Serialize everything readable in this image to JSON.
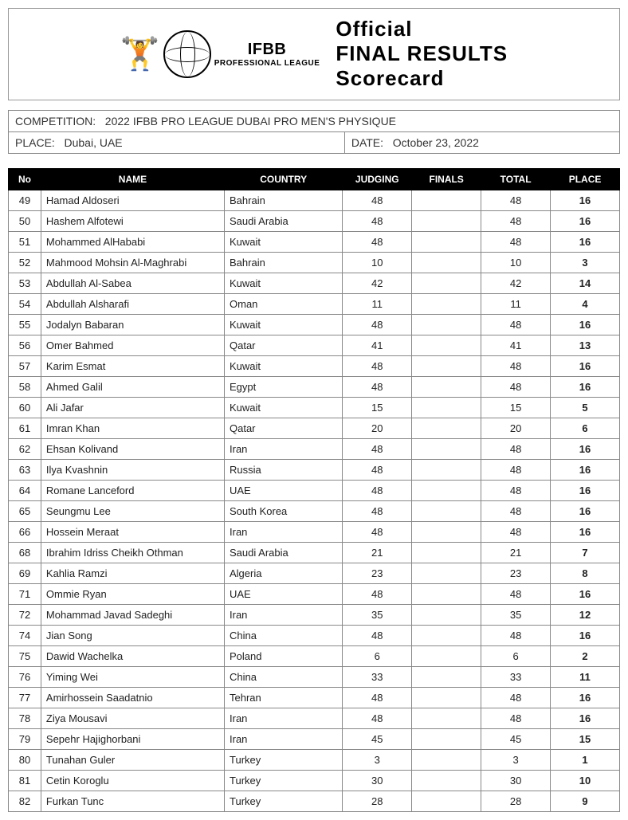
{
  "header": {
    "line1": "Official",
    "line2": "FINAL RESULTS",
    "line3": "Scorecard",
    "logo_big": "IFBB",
    "logo_small": "PROFESSIONAL LEAGUE"
  },
  "meta": {
    "competition_label": "COMPETITION:",
    "competition_value": "2022 IFBB PRO LEAGUE DUBAI PRO MEN'S PHYSIQUE",
    "place_label": "PLACE:",
    "place_value": "Dubai, UAE",
    "date_label": "DATE:",
    "date_value": "October 23, 2022"
  },
  "columns": {
    "no": "No",
    "name": "NAME",
    "country": "COUNTRY",
    "judging": "JUDGING",
    "finals": "FINALS",
    "total": "TOTAL",
    "place": "PLACE"
  },
  "rows": [
    {
      "no": "49",
      "name": "Hamad Aldoseri",
      "country": "Bahrain",
      "judging": "48",
      "finals": "",
      "total": "48",
      "place": "16"
    },
    {
      "no": "50",
      "name": "Hashem Alfotewi",
      "country": "Saudi Arabia",
      "judging": "48",
      "finals": "",
      "total": "48",
      "place": "16"
    },
    {
      "no": "51",
      "name": "Mohammed AlHababi",
      "country": "Kuwait",
      "judging": "48",
      "finals": "",
      "total": "48",
      "place": "16"
    },
    {
      "no": "52",
      "name": "Mahmood Mohsin Al-Maghrabi",
      "country": "Bahrain",
      "judging": "10",
      "finals": "",
      "total": "10",
      "place": "3"
    },
    {
      "no": "53",
      "name": "Abdullah Al-Sabea",
      "country": "Kuwait",
      "judging": "42",
      "finals": "",
      "total": "42",
      "place": "14"
    },
    {
      "no": "54",
      "name": "Abdullah Alsharafi",
      "country": "Oman",
      "judging": "11",
      "finals": "",
      "total": "11",
      "place": "4"
    },
    {
      "no": "55",
      "name": "Jodalyn Babaran",
      "country": "Kuwait",
      "judging": "48",
      "finals": "",
      "total": "48",
      "place": "16"
    },
    {
      "no": "56",
      "name": "Omer Bahmed",
      "country": "Qatar",
      "judging": "41",
      "finals": "",
      "total": "41",
      "place": "13"
    },
    {
      "no": "57",
      "name": "Karim Esmat",
      "country": "Kuwait",
      "judging": "48",
      "finals": "",
      "total": "48",
      "place": "16"
    },
    {
      "no": "58",
      "name": "Ahmed Galil",
      "country": "Egypt",
      "judging": "48",
      "finals": "",
      "total": "48",
      "place": "16"
    },
    {
      "no": "60",
      "name": "Ali Jafar",
      "country": "Kuwait",
      "judging": "15",
      "finals": "",
      "total": "15",
      "place": "5"
    },
    {
      "no": "61",
      "name": "Imran Khan",
      "country": "Qatar",
      "judging": "20",
      "finals": "",
      "total": "20",
      "place": "6"
    },
    {
      "no": "62",
      "name": "Ehsan Kolivand",
      "country": "Iran",
      "judging": "48",
      "finals": "",
      "total": "48",
      "place": "16"
    },
    {
      "no": "63",
      "name": "Ilya Kvashnin",
      "country": "Russia",
      "judging": "48",
      "finals": "",
      "total": "48",
      "place": "16"
    },
    {
      "no": "64",
      "name": "Romane Lanceford",
      "country": "UAE",
      "judging": "48",
      "finals": "",
      "total": "48",
      "place": "16"
    },
    {
      "no": "65",
      "name": "Seungmu Lee",
      "country": "South Korea",
      "judging": "48",
      "finals": "",
      "total": "48",
      "place": "16"
    },
    {
      "no": "66",
      "name": "Hossein Meraat",
      "country": "Iran",
      "judging": "48",
      "finals": "",
      "total": "48",
      "place": "16"
    },
    {
      "no": "68",
      "name": "Ibrahim Idriss Cheikh Othman",
      "country": "Saudi Arabia",
      "judging": "21",
      "finals": "",
      "total": "21",
      "place": "7"
    },
    {
      "no": "69",
      "name": "Kahlia Ramzi",
      "country": "Algeria",
      "judging": "23",
      "finals": "",
      "total": "23",
      "place": "8"
    },
    {
      "no": "71",
      "name": "Ommie Ryan",
      "country": "UAE",
      "judging": "48",
      "finals": "",
      "total": "48",
      "place": "16"
    },
    {
      "no": "72",
      "name": "Mohammad Javad Sadeghi",
      "country": "Iran",
      "judging": "35",
      "finals": "",
      "total": "35",
      "place": "12"
    },
    {
      "no": "74",
      "name": "Jian Song",
      "country": "China",
      "judging": "48",
      "finals": "",
      "total": "48",
      "place": "16"
    },
    {
      "no": "75",
      "name": "Dawid Wachelka",
      "country": "Poland",
      "judging": "6",
      "finals": "",
      "total": "6",
      "place": "2"
    },
    {
      "no": "76",
      "name": "Yiming Wei",
      "country": "China",
      "judging": "33",
      "finals": "",
      "total": "33",
      "place": "11"
    },
    {
      "no": "77",
      "name": "Amirhossein Saadatnio",
      "country": "Tehran",
      "judging": "48",
      "finals": "",
      "total": "48",
      "place": "16"
    },
    {
      "no": "78",
      "name": "Ziya Mousavi",
      "country": "Iran",
      "judging": "48",
      "finals": "",
      "total": "48",
      "place": "16"
    },
    {
      "no": "79",
      "name": "Sepehr Hajighorbani",
      "country": "Iran",
      "judging": "45",
      "finals": "",
      "total": "45",
      "place": "15"
    },
    {
      "no": "80",
      "name": "Tunahan Guler",
      "country": "Turkey",
      "judging": "3",
      "finals": "",
      "total": "3",
      "place": "1"
    },
    {
      "no": "81",
      "name": "Cetin Koroglu",
      "country": "Turkey",
      "judging": "30",
      "finals": "",
      "total": "30",
      "place": "10"
    },
    {
      "no": "82",
      "name": "Furkan Tunc",
      "country": "Turkey",
      "judging": "28",
      "finals": "",
      "total": "28",
      "place": "9"
    }
  ]
}
